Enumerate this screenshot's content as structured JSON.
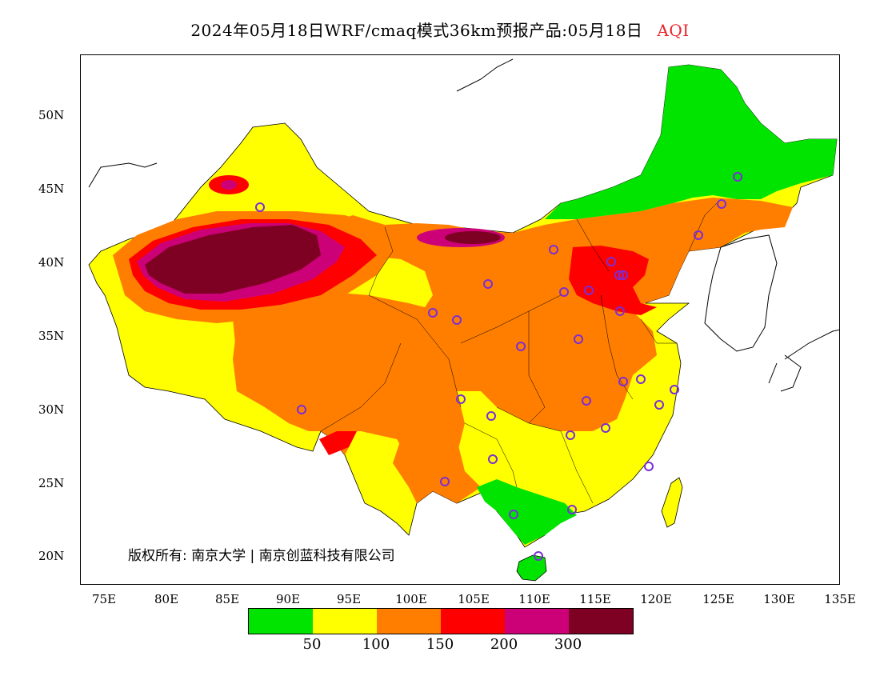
{
  "title": {
    "main": "2024年05月18日WRF/cmaq模式36km预报产品:05月18日",
    "variable": "AQI"
  },
  "map": {
    "lat_ticks": [
      "50N",
      "45N",
      "40N",
      "35N",
      "30N",
      "25N",
      "20N"
    ],
    "lon_ticks": [
      "75E",
      "80E",
      "85E",
      "90E",
      "95E",
      "100E",
      "105E",
      "110E",
      "115E",
      "120E",
      "125E",
      "130E",
      "135E"
    ],
    "credit": "版权所有: 南京大学 | 南京创蓝科技有限公司"
  },
  "legend": {
    "colors": [
      "#00e400",
      "#ffff00",
      "#ff7e00",
      "#ff0000",
      "#cc0077",
      "#7e0023"
    ],
    "thresholds": [
      "50",
      "100",
      "150",
      "200",
      "300"
    ]
  },
  "stations_icon": "circle-marker-icon"
}
